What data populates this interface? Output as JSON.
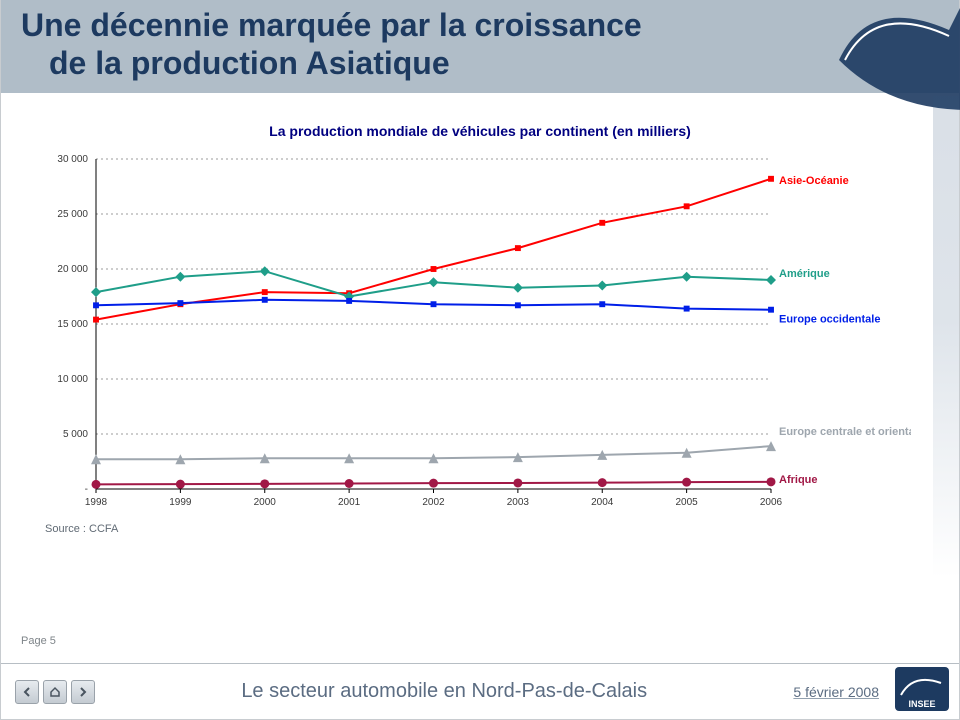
{
  "slide": {
    "title_line1": "Une décennie marquée par la croissance",
    "title_line2": "de la production Asiatique",
    "page_label": "Page 5"
  },
  "chart": {
    "type": "line",
    "title": "La production mondiale de véhicules par continent (en milliers)",
    "source_label": "Source : CCFA",
    "xlabel": "",
    "ylabel": "",
    "xlim": [
      1998,
      2006
    ],
    "ylim": [
      0,
      30000
    ],
    "ytick_step": 5000,
    "yticks": [
      "-",
      "5 000",
      "10 000",
      "15 000",
      "20 000",
      "25 000",
      "30 000"
    ],
    "xticks": [
      "1998",
      "1999",
      "2000",
      "2001",
      "2002",
      "2003",
      "2004",
      "2005",
      "2006"
    ],
    "background_color": "#ffffff",
    "grid_color": "#7b7b7b",
    "grid_dash": "2 3",
    "axis_color": "#000000",
    "label_fontsize": 10,
    "title_fontsize": 14,
    "title_color": "#000080",
    "marker_size": 5,
    "line_width": 2,
    "series": [
      {
        "name": "Asie-Océanie",
        "label": "Asie-Océanie",
        "color": "#ff0000",
        "marker": "square",
        "label_color": "#ff0000",
        "label_bold": true,
        "values": [
          15400,
          16800,
          17900,
          17800,
          20000,
          21900,
          24200,
          25700,
          28200
        ]
      },
      {
        "name": "Amérique",
        "label": "Amérique",
        "color": "#1f9e89",
        "marker": "diamond",
        "label_color": "#1f9e89",
        "label_bold": true,
        "values": [
          17900,
          19300,
          19800,
          17500,
          18800,
          18300,
          18500,
          19300,
          19000
        ]
      },
      {
        "name": "Europe occidentale",
        "label": "Europe occidentale",
        "color": "#001fe8",
        "marker": "square",
        "label_color": "#001fe8",
        "label_bold": true,
        "values": [
          16700,
          16900,
          17200,
          17100,
          16800,
          16700,
          16800,
          16400,
          16300
        ]
      },
      {
        "name": "Europe centrale et orientale",
        "label": "Europe centrale et orientale",
        "color": "#9ea6ae",
        "marker": "triangle",
        "label_color": "#9ea6ae",
        "label_bold": true,
        "values": [
          2700,
          2700,
          2800,
          2800,
          2800,
          2900,
          3100,
          3300,
          3900
        ]
      },
      {
        "name": "Afrique",
        "label": "Afrique",
        "color": "#a11846",
        "marker": "circle",
        "label_color": "#a11846",
        "label_bold": true,
        "values": [
          420,
          440,
          470,
          500,
          530,
          550,
          580,
          620,
          650
        ]
      }
    ]
  },
  "footer": {
    "doc_title": "Le secteur automobile en Nord-Pas-de-Calais",
    "date": "5 février 2008"
  }
}
